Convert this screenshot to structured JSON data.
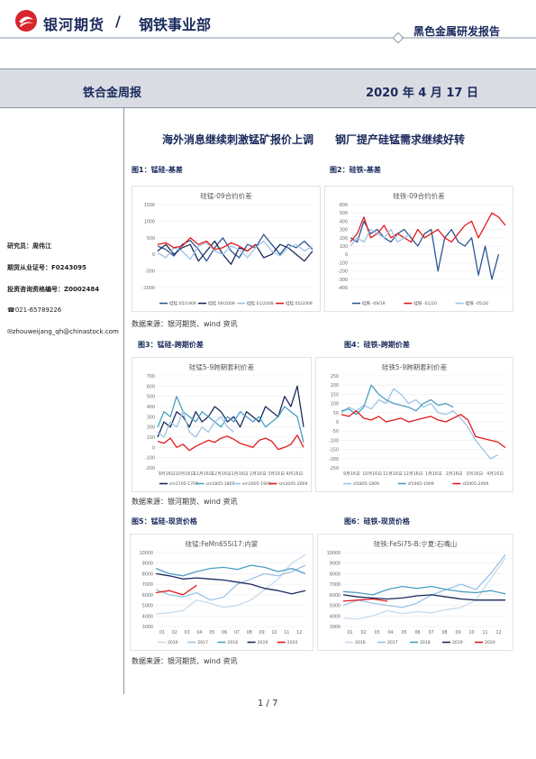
{
  "header": {
    "brand": "银河期货",
    "slash": "/",
    "dept": "钢铁事业部",
    "report_type": "黑色金属研发报告"
  },
  "band": {
    "title": "铁合金周报",
    "date": "2020 年 4 月 17 日"
  },
  "sidebar": {
    "researcher": "研究员：周伟江",
    "cert": "期货从业证号：F0243095",
    "invest_cert": "投资咨询资格编号：Z0002484",
    "phone": "☎021-65789226",
    "email": "✉zhouweijang_qh@chinastock.com"
  },
  "headline": {
    "left": "海外消息继续刺激锰矿报价上调",
    "right": "钢厂提产硅锰需求继续好转"
  },
  "figures": {
    "f1_label": "图1：锰硅-基差",
    "f2_label": "图2：硅铁-基差",
    "f3_label": "图3：锰硅-跨期价差",
    "f4_label": "图4：硅铁-跨期价差",
    "f5_label": "图5：锰硅-现货价格",
    "f6_label": "图6：硅铁-现货价格",
    "source": "数据来源：银河期货、wind 资讯"
  },
  "page": {
    "number": "1 / 7"
  },
  "colors": {
    "navy": "#1a2a5c",
    "red": "#e31a1c",
    "blue": "#2f5597",
    "teal": "#4a9ec4",
    "light": "#9dc3e6"
  },
  "chart_data": [
    {
      "type": "line",
      "title": "硅锰-09合约价差",
      "ylim": [
        -1000,
        1500
      ],
      "yticks": [
        1500,
        1000,
        500,
        0,
        -500,
        -1000
      ],
      "series": [
        {
          "name": "硅锰 05/1909",
          "color": "#2f5597",
          "values": [
            250,
            150,
            -50,
            300,
            420,
            150,
            -200,
            200,
            500,
            100,
            -100,
            300,
            200,
            600,
            300,
            0,
            300,
            200,
            400,
            150
          ]
        },
        {
          "name": "硅锰 09/2009",
          "color": "#1a2a5c",
          "values": [
            100,
            300,
            0,
            200,
            300,
            -200,
            100,
            400,
            0,
            -300,
            200,
            100,
            300,
            -100,
            0,
            300,
            200,
            0,
            -200,
            100
          ]
        },
        {
          "name": "硅锰 01/2009",
          "color": "#9dc3e6",
          "values": [
            50,
            -100,
            200,
            100,
            -150,
            250,
            350,
            100,
            0,
            250,
            150,
            -100,
            200,
            400,
            100,
            -50,
            200,
            300,
            100,
            250
          ]
        },
        {
          "name": "硅锰 05/2009",
          "color": "#e31a1c",
          "values": [
            300,
            350,
            200,
            250,
            500,
            300,
            400,
            150,
            200,
            350,
            250,
            100,
            300
          ]
        }
      ]
    },
    {
      "type": "line",
      "title": "硅铁-09合约价差",
      "ylim": [
        -400,
        600
      ],
      "yticks": [
        600,
        500,
        400,
        300,
        200,
        100,
        0,
        -100,
        -200,
        -300,
        -400
      ],
      "series": [
        {
          "name": "硅铁 -09/19",
          "color": "#2f5597",
          "values": [
            200,
            150,
            400,
            250,
            300,
            200,
            150,
            250,
            300,
            200,
            100,
            250,
            300,
            -200,
            200,
            300,
            150,
            100,
            200,
            -250,
            100,
            -300,
            0
          ]
        },
        {
          "name": "硅铁 -01/20",
          "color": "#e31a1c",
          "values": [
            150,
            250,
            450,
            200,
            250,
            350,
            200,
            250,
            200,
            150,
            300,
            200,
            250,
            300,
            200,
            150,
            250,
            350,
            400,
            200,
            350,
            500,
            450,
            350
          ]
        },
        {
          "name": "硅铁 -05/20",
          "color": "#9dc3e6",
          "values": [
            100,
            200,
            150,
            300,
            250,
            200,
            300,
            150,
            200,
            250
          ]
        }
      ]
    },
    {
      "type": "line",
      "title": "硅锰5-9跨期套利价差",
      "ylim": [
        -200,
        700
      ],
      "yticks": [
        700,
        600,
        500,
        400,
        300,
        200,
        100,
        0,
        -100,
        -200
      ],
      "xticks": [
        "9月16日",
        "10月16日",
        "11月16日",
        "12月16日",
        "1月16日",
        "2月16日",
        "3月16日",
        "4月16日"
      ],
      "series": [
        {
          "name": "sm1705-1709",
          "color": "#1a2a5c",
          "values": [
            100,
            250,
            200,
            350,
            300,
            200,
            350,
            250,
            300,
            400,
            350,
            250,
            300,
            200,
            350,
            300,
            250,
            400,
            350,
            300,
            500,
            400,
            600,
            200
          ]
        },
        {
          "name": "sm1805-1809",
          "color": "#4a9ec4",
          "values": [
            200,
            350,
            300,
            500,
            350,
            300,
            250,
            350,
            300,
            250,
            200,
            300,
            250,
            350,
            300,
            250,
            300,
            200,
            250,
            300,
            400,
            350,
            300,
            50
          ]
        },
        {
          "name": "sm1905-1909",
          "color": "#9dc3e6",
          "values": [
            150,
            100,
            250,
            200,
            350,
            150,
            100,
            200,
            150,
            250,
            300,
            200,
            150
          ]
        },
        {
          "name": "sm2005-2009",
          "color": "#e31a1c",
          "values": [
            60,
            40,
            90,
            0,
            30,
            -30,
            10,
            40,
            70,
            50,
            90,
            110,
            80,
            40,
            20,
            0,
            70,
            90,
            60,
            -20,
            0,
            30,
            120,
            0
          ]
        }
      ]
    },
    {
      "type": "line",
      "title": "硅铁5-9跨期套利价差",
      "ylim": [
        -250,
        250
      ],
      "yticks": [
        250,
        200,
        150,
        100,
        50,
        0,
        -50,
        -100,
        -150,
        -200,
        -250
      ],
      "xticks": [
        "9月16日",
        "10月16日",
        "11月16日",
        "12月16日",
        "1月16日",
        "2月16日",
        "3月16日",
        "4月16日"
      ],
      "series": [
        {
          "name": "sf1805-1809",
          "color": "#9dc3e6",
          "values": [
            50,
            80,
            60,
            90,
            70,
            120,
            100,
            180,
            150,
            100,
            120,
            80,
            100,
            50,
            40,
            60,
            20,
            -30,
            -100,
            -150,
            -200,
            -180
          ]
        },
        {
          "name": "sf1905-1909",
          "color": "#4a9ec4",
          "values": [
            60,
            70,
            40,
            80,
            200,
            150,
            120,
            100,
            90,
            80,
            60,
            100,
            120,
            90,
            100,
            80
          ]
        },
        {
          "name": "sf2005-2009",
          "color": "#e31a1c",
          "values": [
            40,
            30,
            60,
            20,
            10,
            30,
            0,
            10,
            20,
            0,
            10,
            20,
            30,
            10,
            0,
            20,
            40,
            10,
            -80,
            -90,
            -100,
            -110,
            -140
          ]
        }
      ]
    },
    {
      "type": "line",
      "title": "硅锰:FeMn65Si17:内蒙",
      "ylim": [
        3000,
        10000
      ],
      "yticks": [
        10000,
        9000,
        8000,
        7000,
        6000,
        5000,
        4000,
        3000
      ],
      "xticks": [
        "01",
        "02",
        "03",
        "04",
        "05",
        "06",
        "07",
        "08",
        "09",
        "10",
        "11",
        "12"
      ],
      "series": [
        {
          "name": "2016",
          "color": "#c6dbef",
          "values": [
            4200,
            4300,
            4500,
            5500,
            5200,
            4800,
            5000,
            5500,
            6500,
            7500,
            9000,
            9800
          ]
        },
        {
          "name": "2017",
          "color": "#9dc3e6",
          "values": [
            6500,
            6000,
            5800,
            6200,
            5500,
            5800,
            7000,
            7500,
            8000,
            7800,
            8200,
            8800
          ]
        },
        {
          "name": "2018",
          "color": "#4a9ec4",
          "values": [
            8500,
            8000,
            7800,
            8200,
            8500,
            8600,
            8400,
            8800,
            8600,
            8200,
            8500,
            8000
          ]
        },
        {
          "name": "2019",
          "color": "#1a2a5c",
          "values": [
            8000,
            7800,
            7500,
            7600,
            7500,
            7400,
            7200,
            7000,
            6600,
            6400,
            6100,
            6400
          ]
        },
        {
          "name": "2020",
          "color": "#e31a1c",
          "values": [
            6200,
            6400,
            6000,
            6900
          ]
        }
      ]
    },
    {
      "type": "line",
      "title": "硅铁:FeSi75-B:宁夏:石嘴山",
      "ylim": [
        3000,
        10000
      ],
      "yticks": [
        10000,
        9000,
        8000,
        7000,
        6000,
        5000,
        4000,
        3000
      ],
      "xticks": [
        "01",
        "02",
        "03",
        "04",
        "05",
        "06",
        "07",
        "08",
        "09",
        "10",
        "11",
        "12"
      ],
      "series": [
        {
          "name": "2016",
          "color": "#c6dbef",
          "values": [
            3800,
            3700,
            4000,
            4500,
            4200,
            4400,
            4300,
            4600,
            4800,
            5500,
            7500,
            9500
          ]
        },
        {
          "name": "2017",
          "color": "#9dc3e6",
          "values": [
            5000,
            5500,
            5200,
            5000,
            4800,
            5200,
            6000,
            6500,
            7000,
            6500,
            8000,
            9800
          ]
        },
        {
          "name": "2018",
          "color": "#4a9ec4",
          "values": [
            6300,
            6200,
            6000,
            6500,
            6800,
            6600,
            6800,
            6500,
            6300,
            6200,
            6400,
            6100
          ]
        },
        {
          "name": "2019",
          "color": "#1a2a5c",
          "values": [
            6000,
            5800,
            5700,
            5600,
            5700,
            5900,
            6000,
            5800,
            5600,
            5500,
            5500,
            5500
          ]
        },
        {
          "name": "2020",
          "color": "#e31a1c",
          "values": [
            5400,
            5500,
            5600,
            5400
          ]
        }
      ]
    }
  ]
}
